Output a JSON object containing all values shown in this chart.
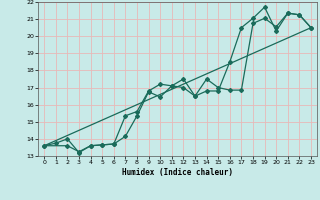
{
  "xlabel": "Humidex (Indice chaleur)",
  "bg_color": "#c8eae8",
  "grid_color": "#e8b8b8",
  "line_color": "#1a6b5a",
  "xlim": [
    -0.5,
    23.5
  ],
  "ylim": [
    13,
    22
  ],
  "xticks": [
    0,
    1,
    2,
    3,
    4,
    5,
    6,
    7,
    8,
    9,
    10,
    11,
    12,
    13,
    14,
    15,
    16,
    17,
    18,
    19,
    20,
    21,
    22,
    23
  ],
  "yticks": [
    13,
    14,
    15,
    16,
    17,
    18,
    19,
    20,
    21,
    22
  ],
  "line1_x": [
    0,
    1,
    2,
    3,
    4,
    5,
    6,
    7,
    8,
    9,
    10,
    11,
    12,
    13,
    14,
    15,
    16,
    17,
    18,
    19,
    20,
    21,
    22,
    23
  ],
  "line1_y": [
    13.6,
    13.75,
    14.0,
    13.2,
    13.6,
    13.65,
    13.7,
    14.15,
    15.35,
    16.75,
    16.45,
    17.1,
    17.5,
    16.5,
    16.8,
    16.8,
    18.5,
    20.5,
    21.05,
    21.7,
    20.3,
    21.35,
    21.25,
    20.5
  ],
  "line2_x": [
    0,
    2,
    3,
    4,
    5,
    6,
    7,
    8,
    9,
    10,
    11,
    12,
    13,
    14,
    15,
    16,
    17,
    18,
    19,
    20,
    21,
    22,
    23
  ],
  "line2_y": [
    13.6,
    13.6,
    13.25,
    13.6,
    13.65,
    13.7,
    15.35,
    15.6,
    16.8,
    17.2,
    17.1,
    17.0,
    16.5,
    17.5,
    17.0,
    16.85,
    16.85,
    20.75,
    21.05,
    20.55,
    21.35,
    21.25,
    20.5
  ],
  "line3_x": [
    0,
    23
  ],
  "line3_y": [
    13.6,
    20.5
  ]
}
